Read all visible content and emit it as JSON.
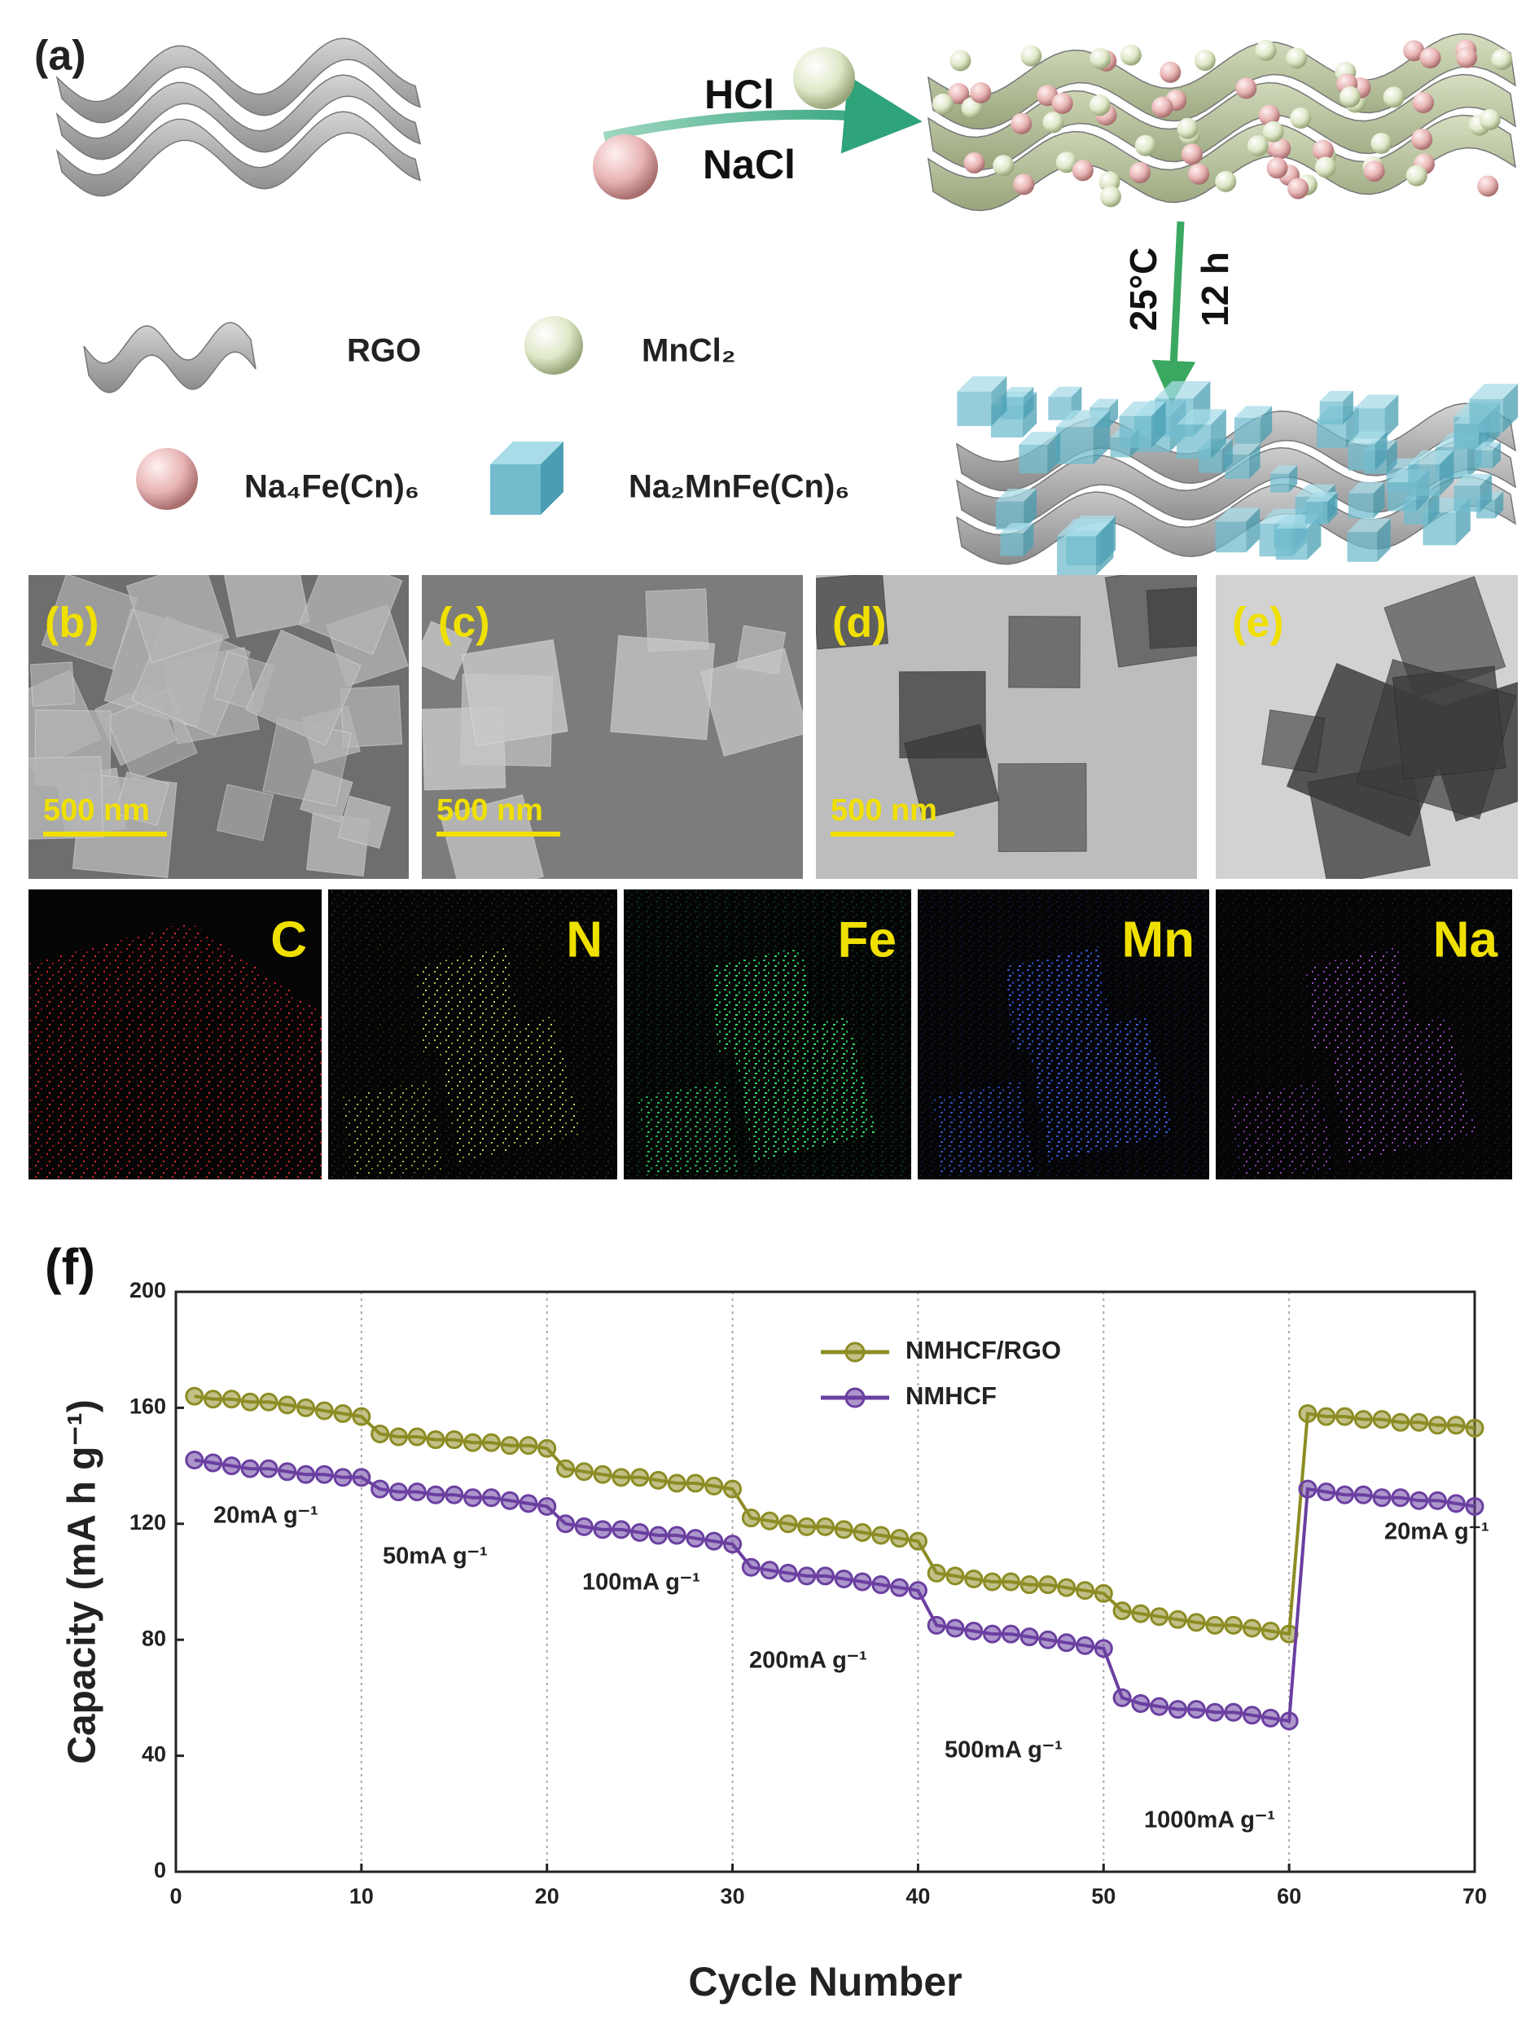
{
  "schematic": {
    "label": "(a)",
    "reagents": [
      "HCl",
      "NaCl"
    ],
    "conditions": [
      "25°C",
      "12 h"
    ],
    "legend": [
      "RGO",
      "MnCl₂",
      "Na₄Fe(Cn)₆",
      "Na₂MnFe(Cn)₆"
    ]
  },
  "micrographs": [
    {
      "label": "(b)",
      "scale_bar": "500 nm"
    },
    {
      "label": "(c)",
      "scale_bar": "500 nm"
    },
    {
      "label": "(d)",
      "scale_bar": "500 nm"
    },
    {
      "label": "(e)"
    }
  ],
  "elemental_maps": [
    "C",
    "N",
    "Fe",
    "Mn",
    "Na"
  ],
  "chart_data": {
    "type": "line",
    "figure_label": "(f)",
    "xlabel": "Cycle Number",
    "ylabel": "Capacity (mA h g⁻¹)",
    "x": [
      1,
      2,
      3,
      4,
      5,
      6,
      7,
      8,
      9,
      10,
      11,
      12,
      13,
      14,
      15,
      16,
      17,
      18,
      19,
      20,
      21,
      22,
      23,
      24,
      25,
      26,
      27,
      28,
      29,
      30,
      31,
      32,
      33,
      34,
      35,
      36,
      37,
      38,
      39,
      40,
      41,
      42,
      43,
      44,
      45,
      46,
      47,
      48,
      49,
      50,
      51,
      52,
      53,
      54,
      55,
      56,
      57,
      58,
      59,
      60,
      61,
      62,
      63,
      64,
      65,
      66,
      67,
      68,
      69,
      70
    ],
    "series": [
      {
        "name": "NMHCF/RGO",
        "color": "#8c8c24",
        "values": [
          164,
          163,
          163,
          162,
          162,
          161,
          160,
          159,
          158,
          157,
          151,
          150,
          150,
          149,
          149,
          148,
          148,
          147,
          147,
          146,
          139,
          138,
          137,
          136,
          136,
          135,
          134,
          134,
          133,
          132,
          122,
          121,
          120,
          119,
          119,
          118,
          117,
          116,
          115,
          114,
          103,
          102,
          101,
          100,
          100,
          99,
          99,
          98,
          97,
          96,
          90,
          89,
          88,
          87,
          86,
          85,
          85,
          84,
          83,
          82,
          158,
          157,
          157,
          156,
          156,
          155,
          155,
          154,
          154,
          153
        ]
      },
      {
        "name": "NMHCF",
        "color": "#6a3fa0",
        "values": [
          142,
          141,
          140,
          139,
          139,
          138,
          137,
          137,
          136,
          136,
          132,
          131,
          131,
          130,
          130,
          129,
          129,
          128,
          127,
          126,
          120,
          119,
          118,
          118,
          117,
          116,
          116,
          115,
          114,
          113,
          105,
          104,
          103,
          102,
          102,
          101,
          100,
          99,
          98,
          97,
          85,
          84,
          83,
          82,
          82,
          81,
          80,
          79,
          78,
          77,
          60,
          58,
          57,
          56,
          56,
          55,
          55,
          54,
          53,
          52,
          132,
          131,
          130,
          130,
          129,
          129,
          128,
          128,
          127,
          126
        ]
      }
    ],
    "xlim": [
      0,
      70
    ],
    "xticks": [
      0,
      10,
      20,
      30,
      40,
      50,
      60,
      70
    ],
    "ylim": [
      0,
      200
    ],
    "yticks": [
      0,
      40,
      80,
      120,
      160,
      200
    ],
    "x_grid": true,
    "legend": "top",
    "annotations": [
      "20mA g⁻¹",
      "50mA g⁻¹",
      "100mA g⁻¹",
      "200mA g⁻¹",
      "500mA g⁻¹",
      "1000mA g⁻¹",
      "20mA g⁻¹"
    ]
  }
}
